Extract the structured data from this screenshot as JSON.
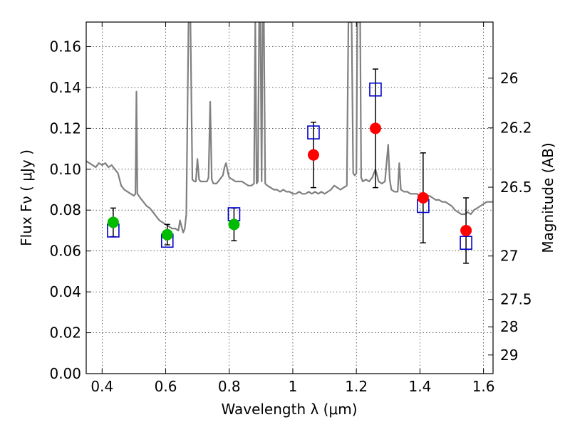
{
  "chart_data": {
    "type": "scatter",
    "xlabel": "Wavelength  λ (μm)",
    "ylabel": "Flux  Fν  ( μJy )",
    "ylabel_right": "Magnitude (AB)",
    "xlim": [
      0.35,
      1.63
    ],
    "ylim": [
      0,
      0.172
    ],
    "grid": true,
    "x_ticks": [
      {
        "value": 0.4,
        "label": "0.4"
      },
      {
        "value": 0.6,
        "label": "0.6"
      },
      {
        "value": 0.8,
        "label": "0.8"
      },
      {
        "value": 1.0,
        "label": "1"
      },
      {
        "value": 1.2,
        "label": "1.2"
      },
      {
        "value": 1.4,
        "label": "1.4"
      },
      {
        "value": 1.6,
        "label": "1.6"
      }
    ],
    "y_ticks": [
      {
        "value": 0.0,
        "label": "0.00"
      },
      {
        "value": 0.02,
        "label": "0.02"
      },
      {
        "value": 0.04,
        "label": "0.04"
      },
      {
        "value": 0.06,
        "label": "0.06"
      },
      {
        "value": 0.08,
        "label": "0.08"
      },
      {
        "value": 0.1,
        "label": "0.10"
      },
      {
        "value": 0.12,
        "label": "0.12"
      },
      {
        "value": 0.14,
        "label": "0.14"
      },
      {
        "value": 0.16,
        "label": "0.16"
      }
    ],
    "right_ticks": [
      {
        "mag": 26,
        "label": "26"
      },
      {
        "mag": 26.2,
        "label": "26.2"
      },
      {
        "mag": 26.5,
        "label": "26.5"
      },
      {
        "mag": 27,
        "label": "27"
      },
      {
        "mag": 27.5,
        "label": "27.5"
      },
      {
        "mag": 28,
        "label": "28"
      },
      {
        "mag": 29,
        "label": "29"
      }
    ],
    "series": [
      {
        "kind": "spectrum",
        "color": "#808080",
        "points": [
          [
            0.35,
            0.104
          ],
          [
            0.36,
            0.103
          ],
          [
            0.37,
            0.102
          ],
          [
            0.38,
            0.101
          ],
          [
            0.39,
            0.103
          ],
          [
            0.4,
            0.102
          ],
          [
            0.41,
            0.103
          ],
          [
            0.42,
            0.101
          ],
          [
            0.43,
            0.102
          ],
          [
            0.44,
            0.1
          ],
          [
            0.45,
            0.098
          ],
          [
            0.46,
            0.092
          ],
          [
            0.47,
            0.09
          ],
          [
            0.48,
            0.089
          ],
          [
            0.49,
            0.088
          ],
          [
            0.5,
            0.087
          ],
          [
            0.505,
            0.088
          ],
          [
            0.508,
            0.138
          ],
          [
            0.511,
            0.088
          ],
          [
            0.52,
            0.086
          ],
          [
            0.53,
            0.084
          ],
          [
            0.54,
            0.082
          ],
          [
            0.55,
            0.081
          ],
          [
            0.56,
            0.079
          ],
          [
            0.57,
            0.077
          ],
          [
            0.58,
            0.075
          ],
          [
            0.59,
            0.074
          ],
          [
            0.6,
            0.073
          ],
          [
            0.61,
            0.072
          ],
          [
            0.62,
            0.071
          ],
          [
            0.63,
            0.071
          ],
          [
            0.64,
            0.07
          ],
          [
            0.645,
            0.075
          ],
          [
            0.65,
            0.072
          ],
          [
            0.655,
            0.069
          ],
          [
            0.66,
            0.071
          ],
          [
            0.665,
            0.078
          ],
          [
            0.672,
            0.172
          ],
          [
            0.678,
            0.172
          ],
          [
            0.684,
            0.095
          ],
          [
            0.69,
            0.094
          ],
          [
            0.695,
            0.094
          ],
          [
            0.7,
            0.105
          ],
          [
            0.705,
            0.095
          ],
          [
            0.71,
            0.094
          ],
          [
            0.72,
            0.094
          ],
          [
            0.73,
            0.094
          ],
          [
            0.735,
            0.096
          ],
          [
            0.74,
            0.133
          ],
          [
            0.745,
            0.095
          ],
          [
            0.75,
            0.093
          ],
          [
            0.76,
            0.093
          ],
          [
            0.77,
            0.095
          ],
          [
            0.78,
            0.097
          ],
          [
            0.785,
            0.101
          ],
          [
            0.79,
            0.103
          ],
          [
            0.795,
            0.099
          ],
          [
            0.8,
            0.096
          ],
          [
            0.81,
            0.095
          ],
          [
            0.82,
            0.094
          ],
          [
            0.83,
            0.094
          ],
          [
            0.84,
            0.094
          ],
          [
            0.85,
            0.093
          ],
          [
            0.86,
            0.092
          ],
          [
            0.87,
            0.092
          ],
          [
            0.878,
            0.093
          ],
          [
            0.882,
            0.172
          ],
          [
            0.886,
            0.093
          ],
          [
            0.89,
            0.094
          ],
          [
            0.894,
            0.172
          ],
          [
            0.898,
            0.172
          ],
          [
            0.902,
            0.094
          ],
          [
            0.905,
            0.172
          ],
          [
            0.909,
            0.172
          ],
          [
            0.913,
            0.093
          ],
          [
            0.92,
            0.092
          ],
          [
            0.93,
            0.091
          ],
          [
            0.94,
            0.09
          ],
          [
            0.95,
            0.09
          ],
          [
            0.96,
            0.089
          ],
          [
            0.97,
            0.09
          ],
          [
            0.98,
            0.089
          ],
          [
            0.99,
            0.089
          ],
          [
            1.0,
            0.088
          ],
          [
            1.01,
            0.088
          ],
          [
            1.02,
            0.089
          ],
          [
            1.03,
            0.088
          ],
          [
            1.04,
            0.088
          ],
          [
            1.05,
            0.089
          ],
          [
            1.06,
            0.088
          ],
          [
            1.07,
            0.089
          ],
          [
            1.08,
            0.088
          ],
          [
            1.09,
            0.089
          ],
          [
            1.1,
            0.088
          ],
          [
            1.12,
            0.09
          ],
          [
            1.13,
            0.092
          ],
          [
            1.14,
            0.091
          ],
          [
            1.15,
            0.09
          ],
          [
            1.16,
            0.091
          ],
          [
            1.17,
            0.092
          ],
          [
            1.175,
            0.172
          ],
          [
            1.185,
            0.172
          ],
          [
            1.19,
            0.098
          ],
          [
            1.195,
            0.097
          ],
          [
            1.2,
            0.098
          ],
          [
            1.203,
            0.172
          ],
          [
            1.208,
            0.172
          ],
          [
            1.212,
            0.172
          ],
          [
            1.215,
            0.096
          ],
          [
            1.22,
            0.094
          ],
          [
            1.23,
            0.095
          ],
          [
            1.24,
            0.094
          ],
          [
            1.25,
            0.096
          ],
          [
            1.26,
            0.1
          ],
          [
            1.265,
            0.097
          ],
          [
            1.27,
            0.094
          ],
          [
            1.28,
            0.093
          ],
          [
            1.29,
            0.094
          ],
          [
            1.3,
            0.112
          ],
          [
            1.305,
            0.095
          ],
          [
            1.31,
            0.09
          ],
          [
            1.32,
            0.089
          ],
          [
            1.33,
            0.089
          ],
          [
            1.335,
            0.103
          ],
          [
            1.34,
            0.09
          ],
          [
            1.35,
            0.089
          ],
          [
            1.36,
            0.089
          ],
          [
            1.37,
            0.088
          ],
          [
            1.38,
            0.088
          ],
          [
            1.39,
            0.088
          ],
          [
            1.4,
            0.087
          ],
          [
            1.41,
            0.087
          ],
          [
            1.42,
            0.087
          ],
          [
            1.43,
            0.087
          ],
          [
            1.44,
            0.086
          ],
          [
            1.45,
            0.085
          ],
          [
            1.46,
            0.085
          ],
          [
            1.47,
            0.084
          ],
          [
            1.48,
            0.084
          ],
          [
            1.49,
            0.083
          ],
          [
            1.5,
            0.082
          ],
          [
            1.51,
            0.08
          ],
          [
            1.52,
            0.079
          ],
          [
            1.53,
            0.078
          ],
          [
            1.54,
            0.078
          ],
          [
            1.55,
            0.079
          ],
          [
            1.56,
            0.078
          ],
          [
            1.57,
            0.08
          ],
          [
            1.58,
            0.081
          ],
          [
            1.59,
            0.082
          ],
          [
            1.6,
            0.083
          ],
          [
            1.61,
            0.084
          ],
          [
            1.63,
            0.084
          ]
        ]
      },
      {
        "kind": "model-squares",
        "color": "#0000cc",
        "x": [
          0.435,
          0.605,
          0.815,
          1.065,
          1.26,
          1.41,
          1.545
        ],
        "y": [
          0.07,
          0.065,
          0.078,
          0.118,
          0.139,
          0.082,
          0.064
        ]
      },
      {
        "kind": "measured-green",
        "color": "#00bb00",
        "x": [
          0.435,
          0.605,
          0.815
        ],
        "y": [
          0.074,
          0.068,
          0.073
        ],
        "yerr": [
          0.007,
          0.005,
          0.008
        ]
      },
      {
        "kind": "measured-red",
        "color": "#ff0000",
        "x": [
          1.065,
          1.26,
          1.41,
          1.545
        ],
        "y": [
          0.107,
          0.12,
          0.086,
          0.07
        ],
        "yerr": [
          0.016,
          0.029,
          0.022,
          0.016
        ]
      }
    ]
  }
}
